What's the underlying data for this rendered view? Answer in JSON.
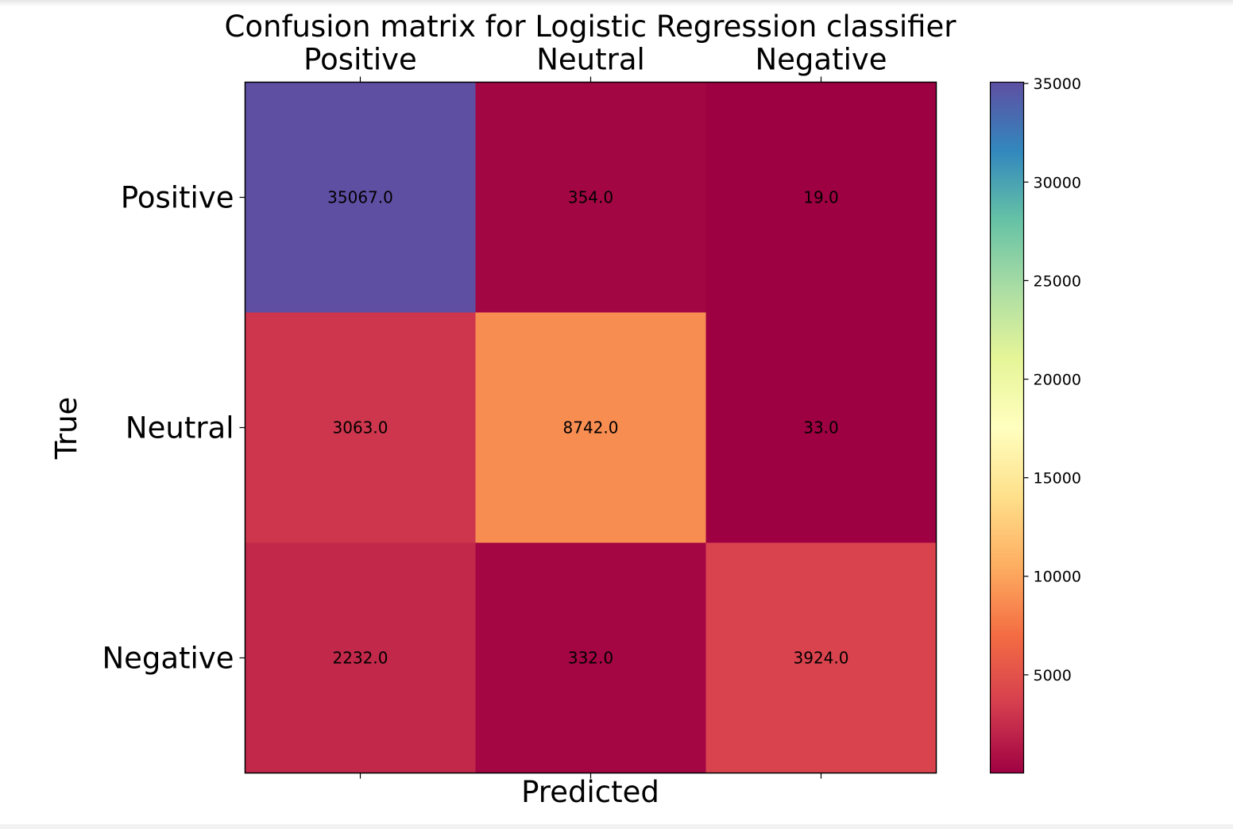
{
  "chart_data": {
    "type": "heatmap",
    "title": "Confusion matrix for Logistic Regression classifier",
    "xlabel": "Predicted",
    "ylabel": "True",
    "x_categories": [
      "Positive",
      "Neutral",
      "Negative"
    ],
    "y_categories": [
      "Positive",
      "Neutral",
      "Negative"
    ],
    "values": [
      [
        35067.0,
        354.0,
        19.0
      ],
      [
        3063.0,
        8742.0,
        33.0
      ],
      [
        2232.0,
        332.0,
        3924.0
      ]
    ],
    "cell_labels": [
      [
        "35067.0",
        "354.0",
        "19.0"
      ],
      [
        "3063.0",
        "8742.0",
        "33.0"
      ],
      [
        "2232.0",
        "332.0",
        "3924.0"
      ]
    ],
    "colormap": "Spectral",
    "colorbar": {
      "min": 19,
      "max": 35067,
      "ticks": [
        5000,
        10000,
        15000,
        20000,
        25000,
        30000,
        35000
      ],
      "tick_labels": [
        "5000",
        "10000",
        "15000",
        "20000",
        "25000",
        "30000",
        "35000"
      ]
    },
    "colors": {
      "spectral_stops": [
        "#9e0142",
        "#d53e4f",
        "#f46d43",
        "#fdae61",
        "#fee08b",
        "#ffffbf",
        "#e6f598",
        "#abdda4",
        "#66c2a5",
        "#3288bd",
        "#5e4fa2"
      ]
    },
    "x_ticks_position": "top",
    "grid": false
  }
}
